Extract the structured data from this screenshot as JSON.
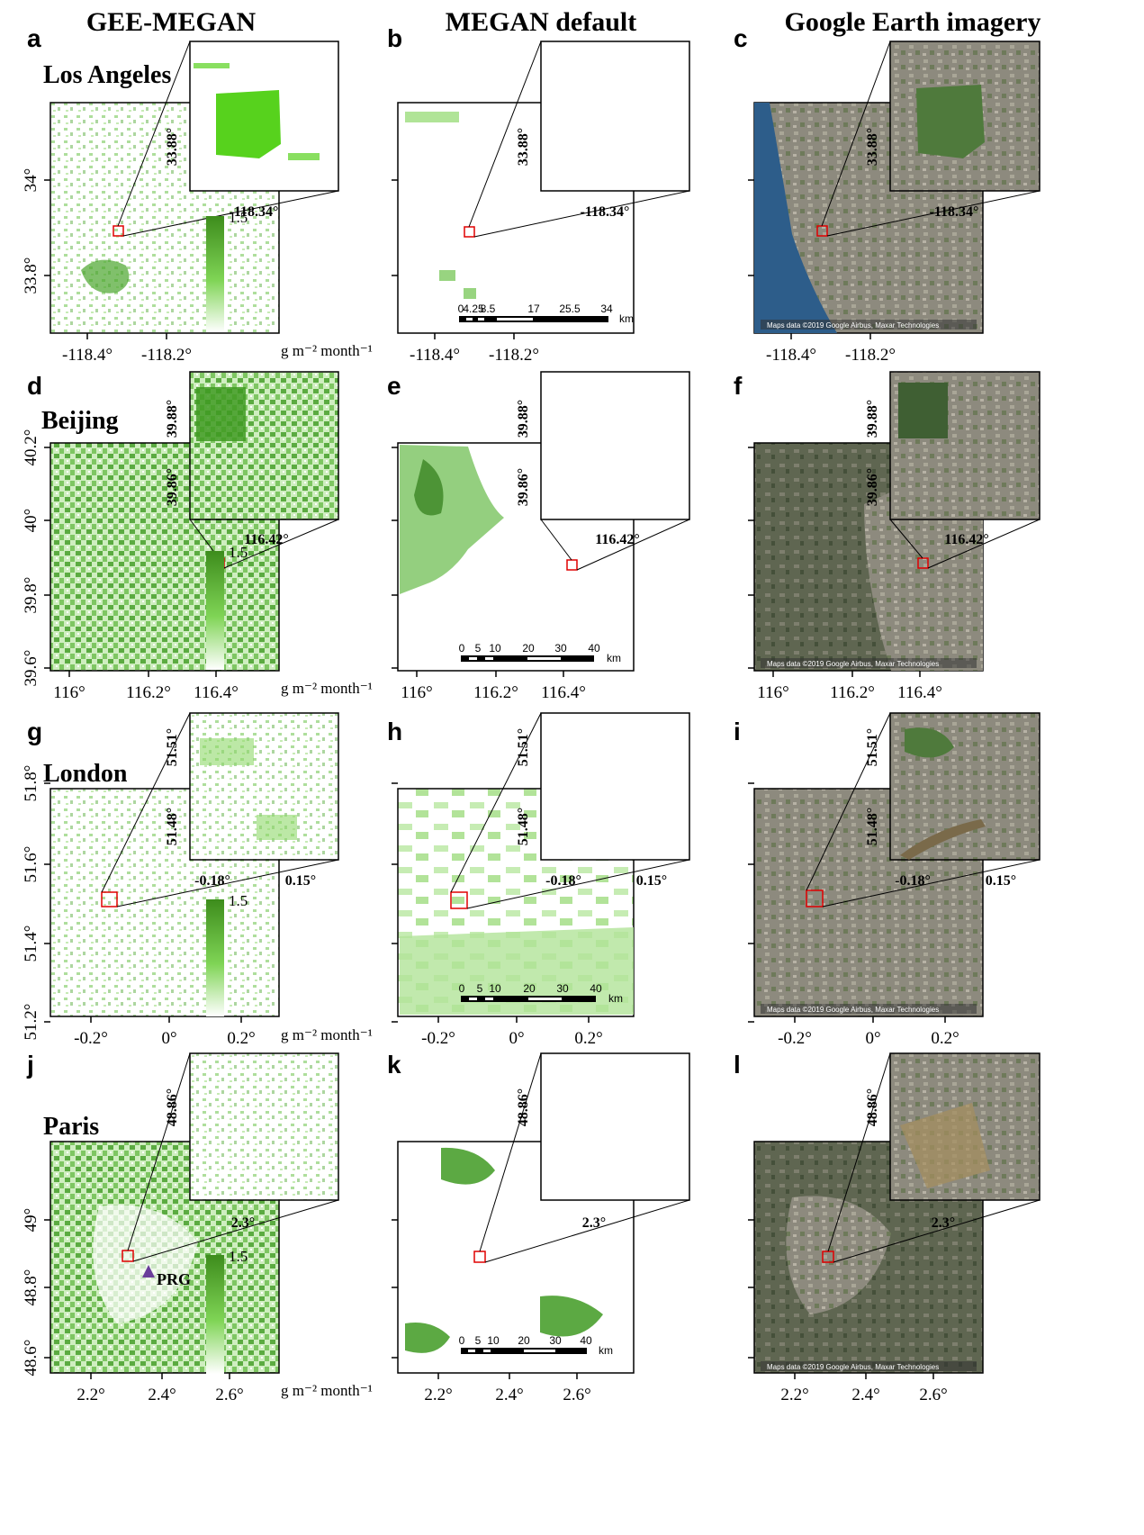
{
  "column_titles": [
    "GEE-MEGAN",
    "MEGAN default",
    "Google Earth imagery"
  ],
  "colorbar": {
    "max_label": "1.5",
    "unit": "g m⁻² month⁻¹",
    "low_color": "#ffffff",
    "high_color": "#3d8c1c"
  },
  "scale_bar_unit": "km",
  "map_credit": "Maps data ©2019 Google  Airbus, Maxar Technologies",
  "rows": [
    {
      "city": "Los Angeles",
      "letters": [
        "a",
        "b",
        "c"
      ],
      "x_ticks": [
        "-118.4°",
        "-118.2°"
      ],
      "y_ticks": [
        "34°",
        "33.8°"
      ],
      "y_ticks_middle": [
        "",
        ""
      ],
      "inset_x": [
        "-118.34°"
      ],
      "inset_y": [
        "33.88°"
      ],
      "scale_labels": [
        "0",
        "4.25",
        "8.5",
        "17",
        "25.5",
        "34"
      ]
    },
    {
      "city": "Beijing",
      "letters": [
        "d",
        "e",
        "f"
      ],
      "x_ticks": [
        "116°",
        "116.2°",
        "116.4°"
      ],
      "y_ticks": [
        "40.2°",
        "40°",
        "39.8°",
        "39.6°"
      ],
      "inset_x": [
        "116.42°"
      ],
      "inset_y": [
        "39.88°",
        "39.86°"
      ],
      "scale_labels": [
        "0",
        "5",
        "10",
        "20",
        "30",
        "40"
      ]
    },
    {
      "city": "London",
      "letters": [
        "g",
        "h",
        "i"
      ],
      "x_ticks": [
        "-0.2°",
        "0°",
        "0.2°"
      ],
      "y_ticks": [
        "51.8°",
        "51.6°",
        "51.4°",
        "51.2°"
      ],
      "inset_x": [
        "-0.18°",
        "0.15°"
      ],
      "inset_y": [
        "51.51°",
        "51.48°"
      ],
      "scale_labels": [
        "0",
        "5",
        "10",
        "20",
        "30",
        "40"
      ]
    },
    {
      "city": "Paris",
      "letters": [
        "j",
        "k",
        "l"
      ],
      "x_ticks": [
        "2.2°",
        "2.4°",
        "2.6°"
      ],
      "y_ticks": [
        "49°",
        "48.8°",
        "48.6°"
      ],
      "inset_x": [
        "2.3°"
      ],
      "inset_y": [
        "48.86°"
      ],
      "scale_labels": [
        "0",
        "5",
        "10",
        "20",
        "30",
        "40"
      ],
      "marker_label": "PRG",
      "marker_color": "#6a3d9a"
    }
  ]
}
